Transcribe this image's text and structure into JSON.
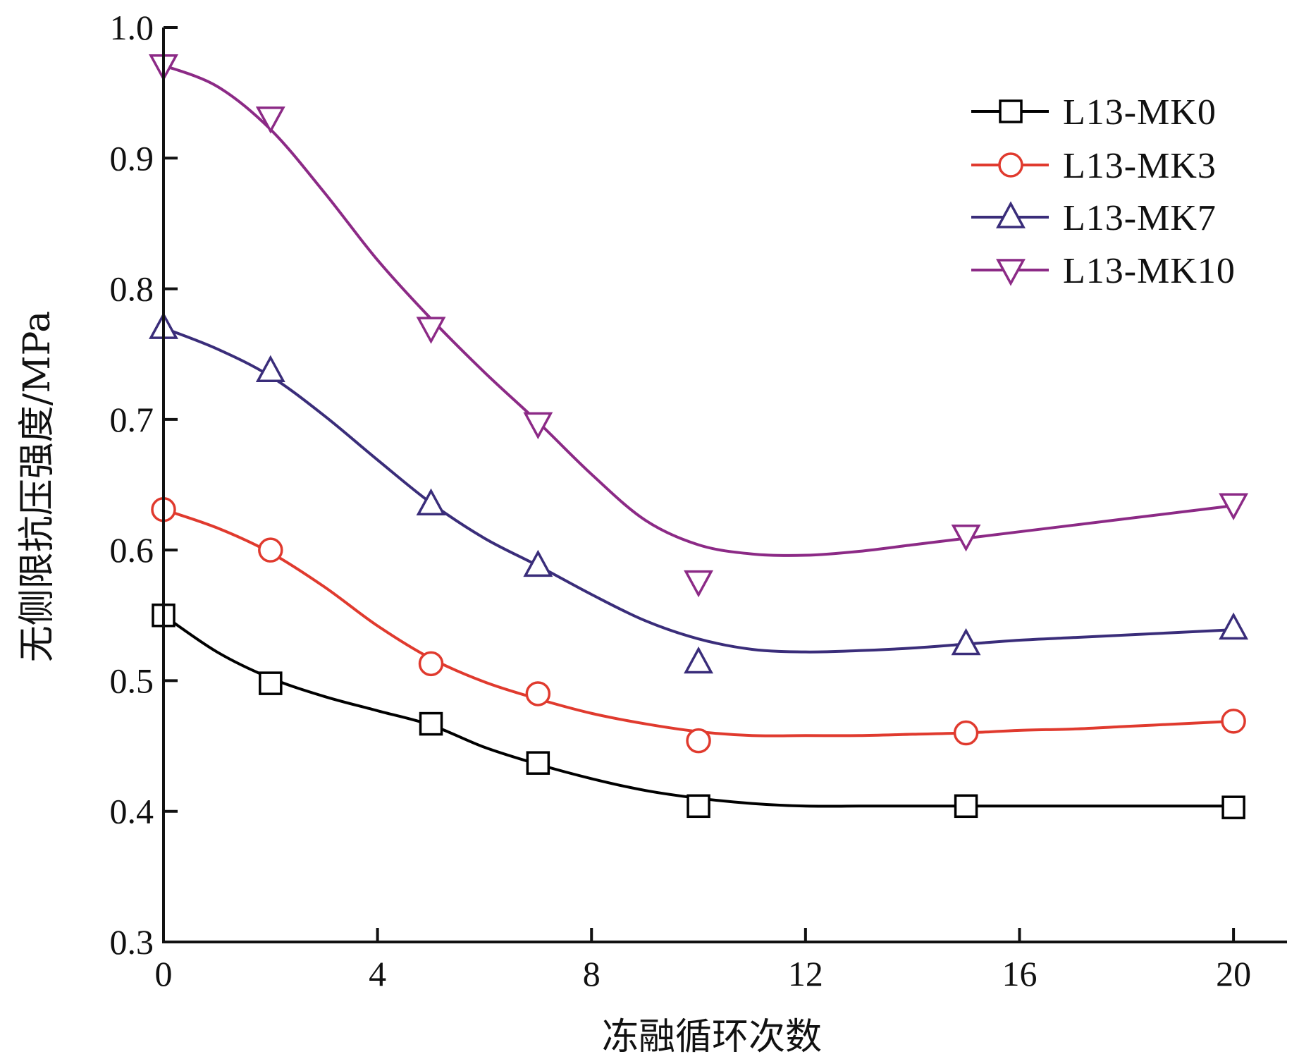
{
  "chart_data": {
    "type": "line",
    "title": "",
    "xlabel": "冻融循环次数",
    "ylabel": "无侧限抗压强度/MPa",
    "xlim": [
      0,
      21
    ],
    "ylim": [
      0.3,
      1.0
    ],
    "xticks": [
      0,
      4,
      8,
      12,
      16,
      20
    ],
    "xtick_labels": [
      "0",
      "4",
      "8",
      "12",
      "16",
      "20"
    ],
    "yticks": [
      0.3,
      0.4,
      0.5,
      0.6,
      0.7,
      0.8,
      0.9,
      1.0
    ],
    "ytick_labels": [
      "0.3",
      "0.4",
      "0.5",
      "0.6",
      "0.7",
      "0.8",
      "0.9",
      "1.0"
    ],
    "grid": false,
    "legend_position": "top-right",
    "x": [
      0,
      2,
      5,
      7,
      10,
      15,
      20
    ],
    "series": [
      {
        "name": "L13-MK0",
        "color": "#000000",
        "marker": "square",
        "values": [
          0.55,
          0.498,
          0.467,
          0.437,
          0.404,
          0.404,
          0.403
        ],
        "curve_x": [
          0,
          1,
          2,
          3,
          4,
          5,
          6,
          7,
          8,
          9,
          10,
          11,
          12,
          13,
          14,
          15,
          16,
          17,
          18,
          19,
          20
        ],
        "curve_y": [
          0.55,
          0.522,
          0.502,
          0.488,
          0.477,
          0.466,
          0.449,
          0.436,
          0.425,
          0.416,
          0.41,
          0.406,
          0.404,
          0.404,
          0.404,
          0.404,
          0.404,
          0.404,
          0.404,
          0.404,
          0.404
        ]
      },
      {
        "name": "L13-MK3",
        "color": "#e03a2e",
        "marker": "circle",
        "values": [
          0.631,
          0.6,
          0.513,
          0.49,
          0.454,
          0.46,
          0.469
        ],
        "curve_x": [
          0,
          1,
          2,
          3,
          4,
          5,
          6,
          7,
          8,
          9,
          10,
          11,
          12,
          13,
          14,
          15,
          16,
          17,
          18,
          19,
          20
        ],
        "curve_y": [
          0.631,
          0.617,
          0.598,
          0.572,
          0.542,
          0.517,
          0.499,
          0.486,
          0.475,
          0.467,
          0.461,
          0.458,
          0.458,
          0.458,
          0.459,
          0.46,
          0.462,
          0.463,
          0.465,
          0.467,
          0.469
        ]
      },
      {
        "name": "L13-MK7",
        "color": "#3a2d7a",
        "marker": "triangle-up",
        "values": [
          0.77,
          0.737,
          0.635,
          0.588,
          0.514,
          0.528,
          0.54
        ],
        "curve_x": [
          0,
          1,
          2,
          3,
          4,
          5,
          6,
          7,
          8,
          9,
          10,
          11,
          12,
          13,
          14,
          15,
          16,
          17,
          18,
          19,
          20
        ],
        "curve_y": [
          0.77,
          0.754,
          0.733,
          0.703,
          0.669,
          0.636,
          0.609,
          0.588,
          0.566,
          0.546,
          0.532,
          0.524,
          0.522,
          0.523,
          0.525,
          0.528,
          0.531,
          0.533,
          0.535,
          0.537,
          0.539
        ]
      },
      {
        "name": "L13-MK10",
        "color": "#8c2a86",
        "marker": "triangle-down",
        "values": [
          0.971,
          0.931,
          0.77,
          0.697,
          0.576,
          0.611,
          0.635
        ],
        "curve_x": [
          0,
          1,
          2,
          3,
          4,
          5,
          6,
          7,
          8,
          9,
          10,
          11,
          12,
          13,
          14,
          15,
          16,
          17,
          18,
          19,
          20
        ],
        "curve_y": [
          0.971,
          0.955,
          0.922,
          0.874,
          0.822,
          0.777,
          0.736,
          0.698,
          0.658,
          0.623,
          0.604,
          0.597,
          0.596,
          0.599,
          0.604,
          0.609,
          0.614,
          0.619,
          0.624,
          0.629,
          0.634
        ]
      }
    ]
  }
}
